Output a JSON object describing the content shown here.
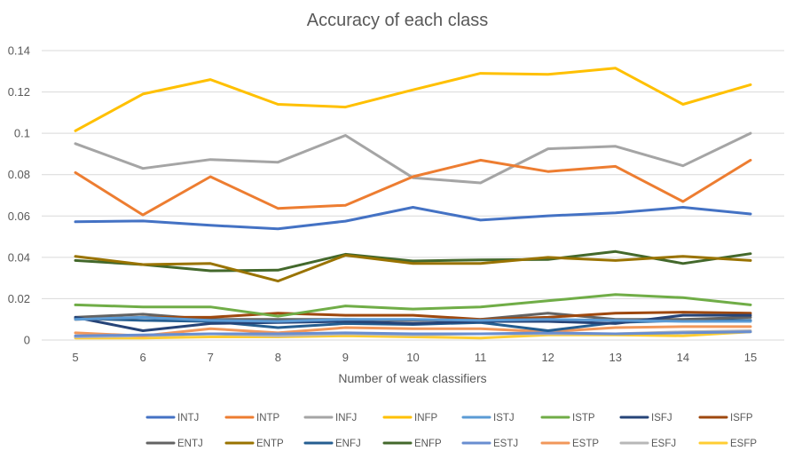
{
  "chart_data": {
    "type": "line",
    "title": "Accuracy of each class",
    "xlabel": "Number of weak classifiers",
    "ylabel": "",
    "x": [
      5,
      6,
      7,
      8,
      9,
      10,
      11,
      12,
      13,
      14,
      15
    ],
    "ylim": [
      0,
      0.14
    ],
    "yticks": [
      "0",
      "0.02",
      "0.04",
      "0.06",
      "0.08",
      "0.1",
      "0.12",
      "0.14"
    ],
    "grid": true,
    "legend_position": "bottom",
    "series": [
      {
        "name": "INTJ",
        "color": "#4472C4",
        "values": [
          0.0572,
          0.0576,
          0.0555,
          0.0538,
          0.0575,
          0.0642,
          0.058,
          0.0601,
          0.0615,
          0.0642,
          0.061
        ]
      },
      {
        "name": "INTP",
        "color": "#ED7D31",
        "values": [
          0.081,
          0.0605,
          0.079,
          0.0637,
          0.0652,
          0.079,
          0.087,
          0.0815,
          0.084,
          0.067,
          0.087
        ]
      },
      {
        "name": "INFJ",
        "color": "#A5A5A5",
        "values": [
          0.095,
          0.083,
          0.0873,
          0.086,
          0.099,
          0.0785,
          0.076,
          0.0925,
          0.0937,
          0.0843,
          0.1
        ]
      },
      {
        "name": "INFP",
        "color": "#FFC000",
        "values": [
          0.1012,
          0.119,
          0.126,
          0.114,
          0.1127,
          0.121,
          0.129,
          0.1285,
          0.1315,
          0.114,
          0.1235
        ]
      },
      {
        "name": "ISTJ",
        "color": "#5B9BD5",
        "values": [
          0.01,
          0.011,
          0.0095,
          0.009,
          0.01,
          0.01,
          0.0095,
          0.01,
          0.0095,
          0.009,
          0.009
        ]
      },
      {
        "name": "ISTP",
        "color": "#70AD47",
        "values": [
          0.017,
          0.016,
          0.016,
          0.0115,
          0.0165,
          0.015,
          0.016,
          0.019,
          0.022,
          0.0205,
          0.017
        ]
      },
      {
        "name": "ISFJ",
        "color": "#264478",
        "values": [
          0.011,
          0.0045,
          0.008,
          0.0085,
          0.009,
          0.008,
          0.009,
          0.009,
          0.008,
          0.012,
          0.012
        ]
      },
      {
        "name": "ISFP",
        "color": "#9E480E",
        "values": [
          0.01,
          0.011,
          0.011,
          0.013,
          0.012,
          0.012,
          0.01,
          0.011,
          0.013,
          0.0135,
          0.013
        ]
      },
      {
        "name": "ENTJ",
        "color": "#636363",
        "values": [
          0.011,
          0.0125,
          0.01,
          0.01,
          0.01,
          0.0095,
          0.01,
          0.013,
          0.01,
          0.01,
          0.011
        ]
      },
      {
        "name": "ENTP",
        "color": "#997300",
        "values": [
          0.0405,
          0.0365,
          0.037,
          0.0285,
          0.041,
          0.037,
          0.037,
          0.04,
          0.0385,
          0.0405,
          0.0385
        ]
      },
      {
        "name": "ENFJ",
        "color": "#255E91",
        "values": [
          0.0105,
          0.0095,
          0.009,
          0.006,
          0.008,
          0.0075,
          0.0085,
          0.0045,
          0.0085,
          0.0095,
          0.0095
        ]
      },
      {
        "name": "ENFP",
        "color": "#43682B",
        "values": [
          0.0385,
          0.0365,
          0.0335,
          0.0338,
          0.0415,
          0.0382,
          0.0388,
          0.039,
          0.0428,
          0.037,
          0.0418
        ]
      },
      {
        "name": "ESTJ",
        "color": "#698ED0",
        "values": [
          0.002,
          0.0025,
          0.003,
          0.003,
          0.0035,
          0.003,
          0.003,
          0.0035,
          0.003,
          0.0035,
          0.004
        ]
      },
      {
        "name": "ESTP",
        "color": "#F1975A",
        "values": [
          0.0035,
          0.002,
          0.0055,
          0.0035,
          0.006,
          0.0055,
          0.0055,
          0.004,
          0.006,
          0.0065,
          0.0065
        ]
      },
      {
        "name": "ESFJ",
        "color": "#B7B7B7",
        "values": [
          0.0015,
          0.002,
          0.003,
          0.002,
          0.003,
          0.0025,
          0.003,
          0.003,
          0.003,
          0.004,
          0.0045
        ]
      },
      {
        "name": "ESFP",
        "color": "#FFCD33",
        "values": [
          0.001,
          0.001,
          0.0015,
          0.0015,
          0.002,
          0.0015,
          0.001,
          0.0025,
          0.0025,
          0.002,
          0.004
        ]
      }
    ]
  }
}
